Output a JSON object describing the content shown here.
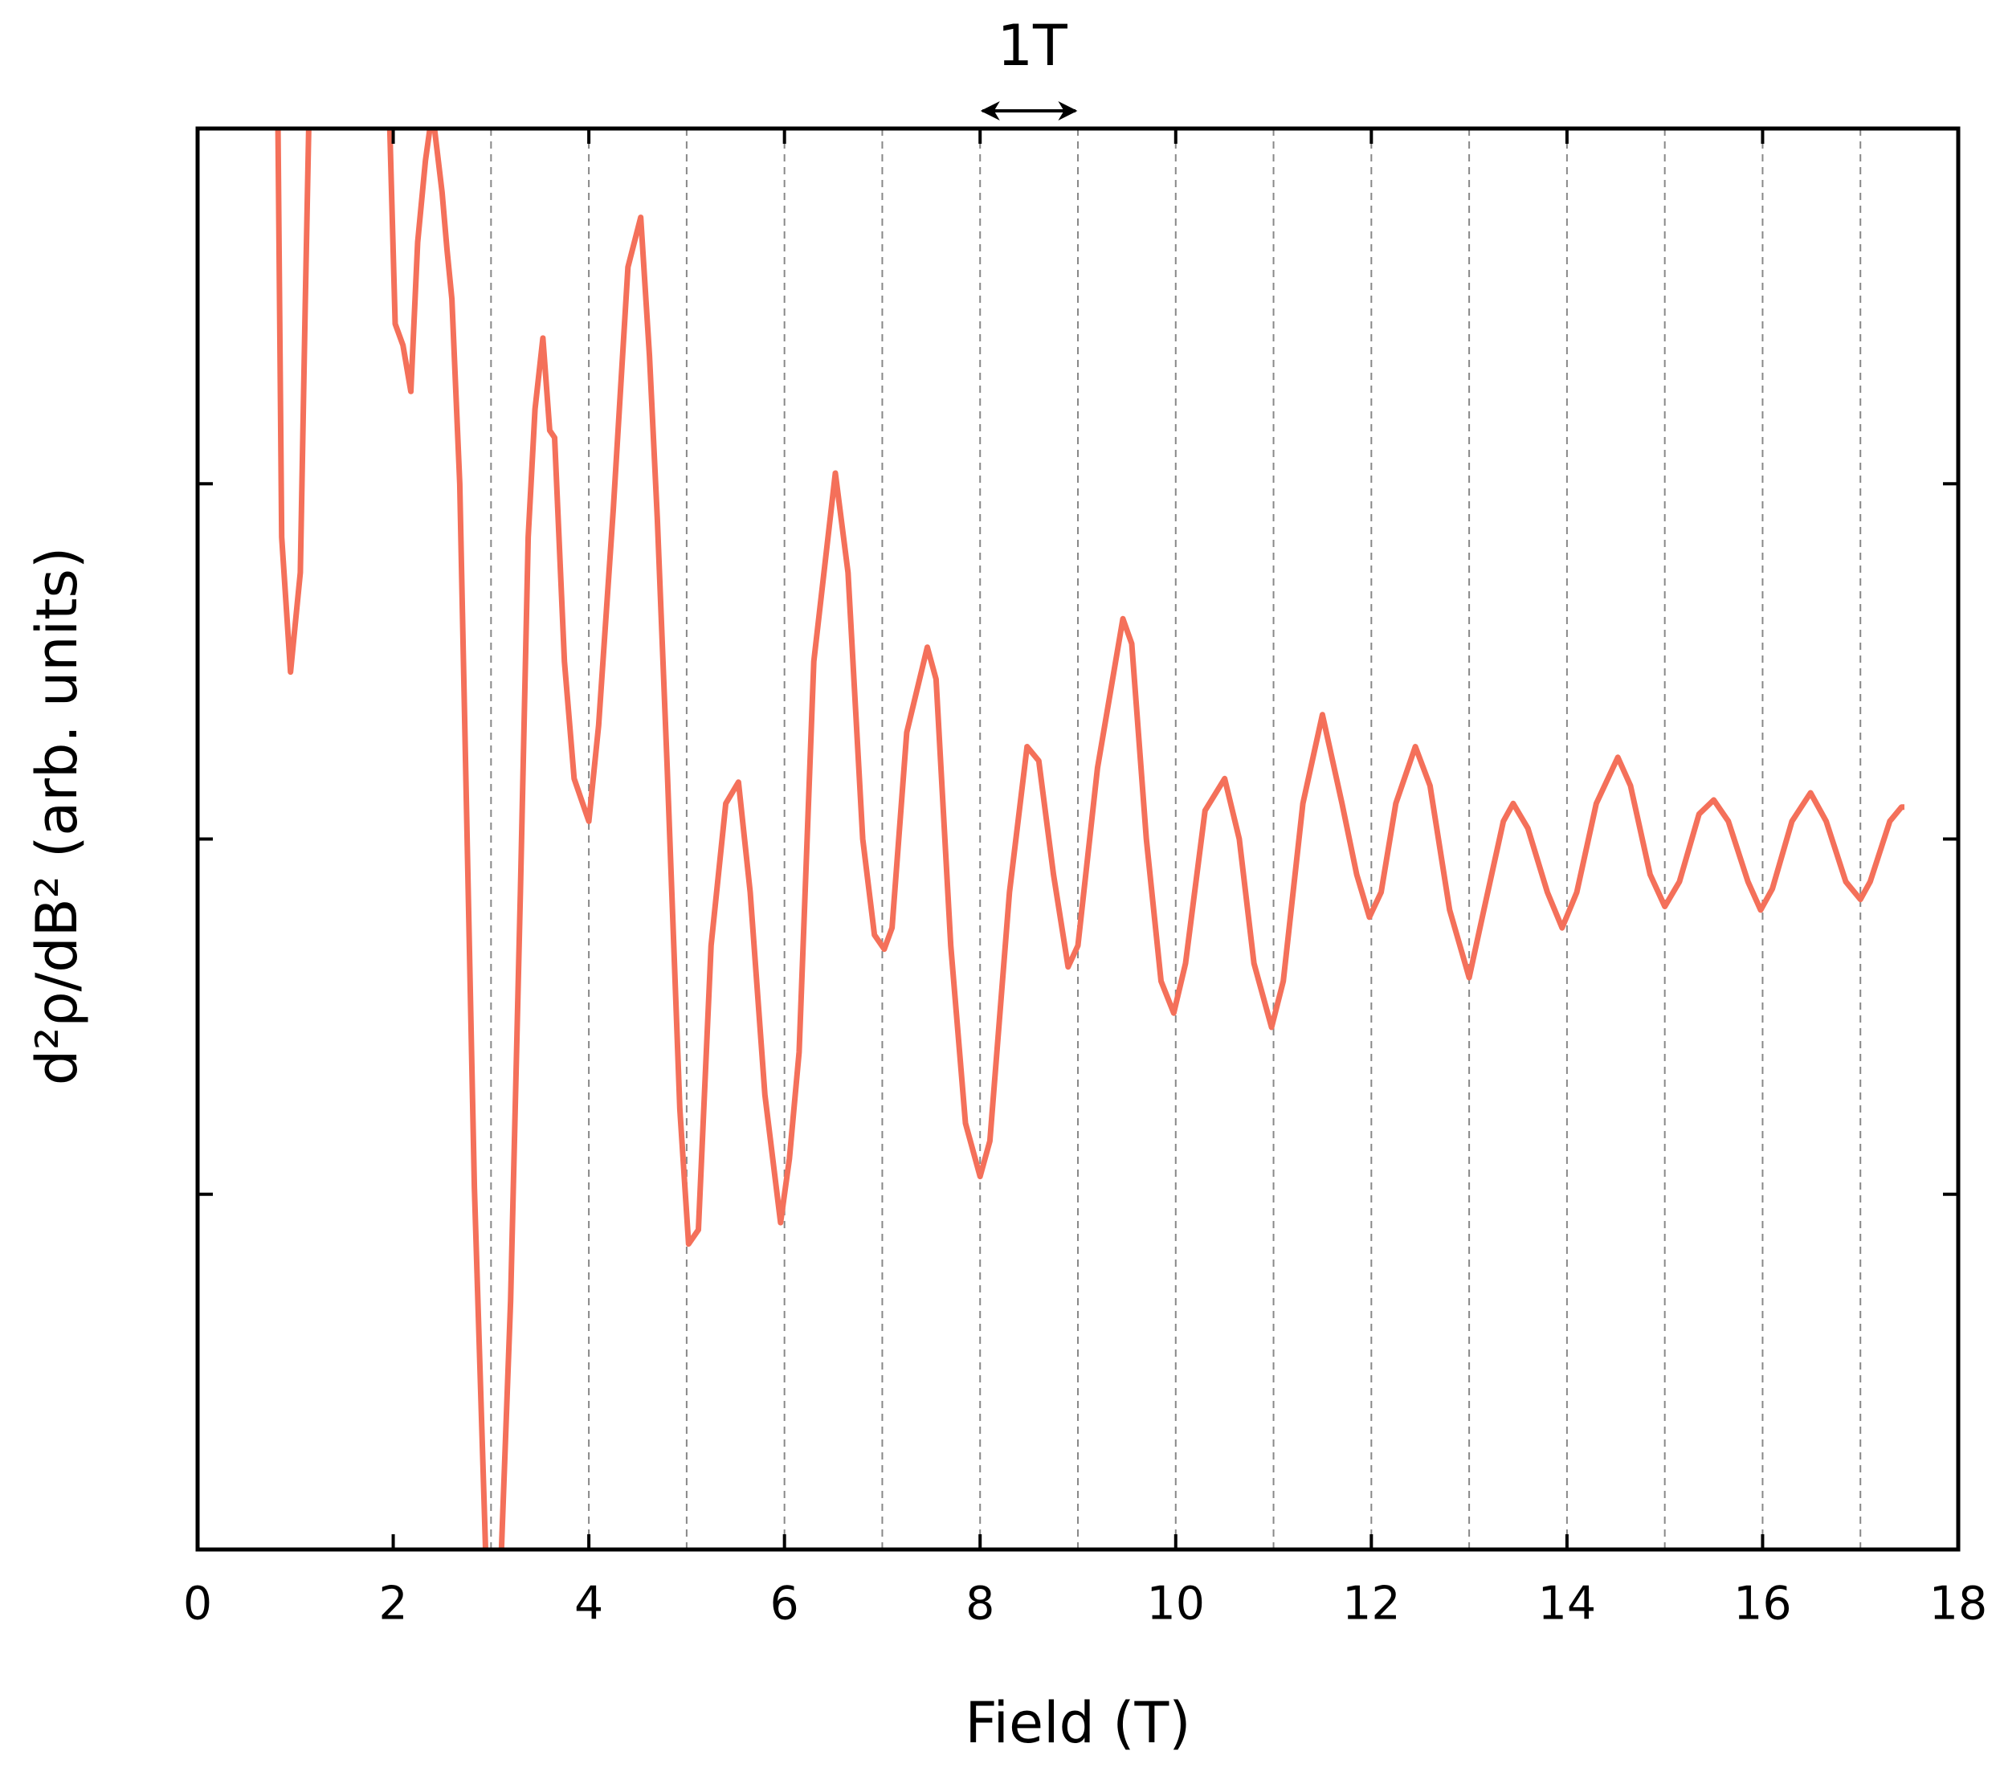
{
  "chart_data": {
    "type": "line",
    "xlabel": "Field (T)",
    "ylabel": "d²ρ/dB² (arb. units)",
    "annotation": {
      "text": "1T",
      "x": [
        8,
        9
      ]
    },
    "xlim": [
      0,
      18
    ],
    "xticks": [
      0,
      2,
      4,
      6,
      8,
      10,
      12,
      14,
      16,
      18
    ],
    "ylim": [
      -2,
      2
    ],
    "yticks": [
      -1,
      0,
      1
    ],
    "xgrid": [
      3,
      4,
      5,
      6,
      7,
      8,
      9,
      10,
      11,
      12,
      13,
      14,
      15,
      16,
      17
    ],
    "series": [
      {
        "color": "#f4705a",
        "x": [
          0.82,
          0.86,
          0.95,
          1.05,
          1.1,
          1.14,
          1.5,
          1.96,
          2.02,
          2.1,
          2.18,
          2.25,
          2.33,
          2.4,
          2.5,
          2.55,
          2.6,
          2.68,
          2.83,
          2.95,
          3.1,
          3.2,
          3.3,
          3.38,
          3.45,
          3.53,
          3.6,
          3.65,
          3.75,
          3.85,
          4.0,
          4.1,
          4.25,
          4.4,
          4.53,
          4.62,
          4.7,
          4.8,
          4.93,
          5.02,
          5.12,
          5.25,
          5.4,
          5.53,
          5.65,
          5.8,
          5.96,
          6.05,
          6.15,
          6.3,
          6.52,
          6.65,
          6.8,
          6.92,
          7.02,
          7.1,
          7.25,
          7.46,
          7.55,
          7.7,
          7.85,
          8.0,
          8.1,
          8.3,
          8.48,
          8.6,
          8.75,
          8.9,
          9.0,
          9.2,
          9.46,
          9.55,
          9.7,
          9.85,
          9.98,
          10.1,
          10.3,
          10.5,
          10.65,
          10.8,
          10.98,
          11.1,
          11.3,
          11.5,
          11.7,
          11.85,
          11.98,
          12.1,
          12.25,
          12.45,
          12.6,
          12.8,
          13.0,
          13.15,
          13.35,
          13.45,
          13.6,
          13.8,
          13.95,
          14.1,
          14.3,
          14.52,
          14.65,
          14.85,
          15.0,
          15.15,
          15.35,
          15.5,
          15.65,
          15.85,
          15.98,
          16.1,
          16.3,
          16.49,
          16.65,
          16.85,
          17.0,
          17.1,
          17.3,
          17.42,
          17.45
        ],
        "values": [
          2.05,
          0.85,
          0.47,
          0.75,
          1.5,
          2.05,
          null,
          2.05,
          1.45,
          1.39,
          1.26,
          1.68,
          1.91,
          2.05,
          1.82,
          1.66,
          1.52,
          1.0,
          -0.98,
          -2.05,
          -2.05,
          -1.3,
          -0.15,
          0.85,
          1.21,
          1.41,
          1.15,
          1.13,
          0.5,
          0.17,
          0.05,
          0.32,
          0.93,
          1.61,
          1.75,
          1.36,
          0.9,
          0.21,
          -0.76,
          -1.14,
          -1.1,
          -0.3,
          0.1,
          0.16,
          -0.15,
          -0.72,
          -1.08,
          -0.9,
          -0.6,
          0.5,
          1.03,
          0.75,
          0.0,
          -0.27,
          -0.31,
          -0.25,
          0.3,
          0.54,
          0.45,
          -0.3,
          -0.8,
          -0.95,
          -0.85,
          -0.15,
          0.26,
          0.22,
          -0.1,
          -0.36,
          -0.3,
          0.2,
          0.62,
          0.55,
          0.0,
          -0.4,
          -0.49,
          -0.35,
          0.08,
          0.17,
          0.0,
          -0.35,
          -0.53,
          -0.4,
          0.1,
          0.35,
          0.1,
          -0.1,
          -0.22,
          -0.15,
          0.1,
          0.26,
          0.15,
          -0.2,
          -0.39,
          -0.2,
          0.05,
          0.1,
          0.03,
          -0.15,
          -0.25,
          -0.15,
          0.1,
          0.23,
          0.15,
          -0.1,
          -0.19,
          -0.12,
          0.07,
          0.11,
          0.05,
          -0.12,
          -0.2,
          -0.14,
          0.05,
          0.13,
          0.05,
          -0.12,
          -0.17,
          -0.12,
          0.05,
          0.09,
          0.09
        ]
      }
    ]
  }
}
